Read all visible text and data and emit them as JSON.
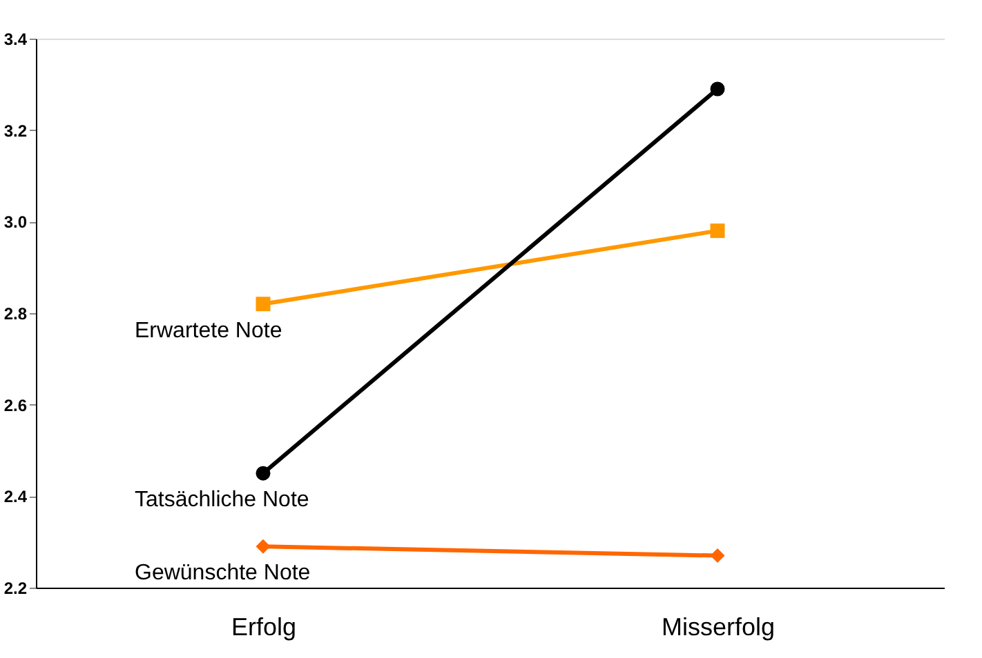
{
  "chart_data": {
    "type": "line",
    "categories": [
      "Erfolg",
      "Misserfolg"
    ],
    "series": [
      {
        "name": "Erwartete Note",
        "color": "#ff9900",
        "marker": "square",
        "values": [
          2.82,
          2.98
        ]
      },
      {
        "name": "Tatsächliche Note",
        "color": "#000000",
        "marker": "circle",
        "values": [
          2.45,
          3.29
        ]
      },
      {
        "name": "Gewünschte Note",
        "color": "#ff6600",
        "marker": "diamond",
        "values": [
          2.29,
          2.27
        ]
      }
    ],
    "ylim": [
      2.2,
      3.4
    ],
    "yticks": [
      2.2,
      2.4,
      2.6,
      2.8,
      {
        "value": 3.0,
        "label": "3.0"
      },
      3.2,
      3.4
    ],
    "grid": false
  }
}
